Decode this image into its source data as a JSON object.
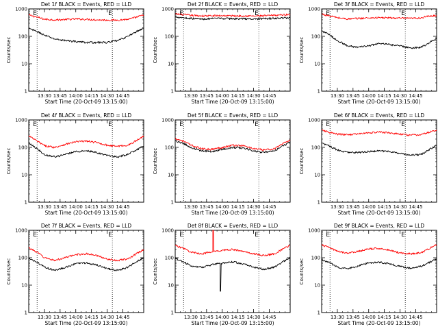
{
  "chart_data": [
    {
      "type": "line",
      "title": "Det 1f BLACK = Events, RED = LLD",
      "xlabel": "Start Time (20-Oct-09 13:15:00)",
      "ylabel": "Counts/sec",
      "xlim": [
        0,
        110
      ],
      "ylim": [
        1,
        1000
      ],
      "yscale": "log",
      "x_ticks": [
        15,
        30,
        45,
        60,
        75,
        90
      ],
      "x_tick_labels": [
        "13:30",
        "13:45",
        "14:00",
        "14:15",
        "14:30",
        "14:45"
      ],
      "y_ticks": [
        1,
        10,
        100,
        1000
      ],
      "y_tick_labels": [
        "1",
        "10",
        "100",
        "1000"
      ],
      "markers": [
        {
          "x": 8,
          "label": "E"
        },
        {
          "x": 80,
          "label": "E"
        }
      ],
      "series": [
        {
          "color": "#000000",
          "x": [
            0,
            8,
            15,
            25,
            35,
            45,
            55,
            65,
            75,
            85,
            95,
            100,
            110
          ],
          "values": [
            190,
            150,
            110,
            80,
            70,
            65,
            60,
            60,
            60,
            70,
            100,
            130,
            200
          ]
        },
        {
          "color": "#ff0000",
          "x": [
            0,
            8,
            15,
            25,
            35,
            45,
            55,
            65,
            75,
            85,
            95,
            100,
            110
          ],
          "values": [
            600,
            500,
            420,
            400,
            410,
            430,
            420,
            400,
            390,
            390,
            420,
            460,
            600
          ]
        }
      ]
    },
    {
      "type": "line",
      "title": "Det 2f BLACK = Events, RED = LLD",
      "xlabel": "Start Time (20-Oct-09 13:15:00)",
      "ylabel": "Counts/sec",
      "xlim": [
        0,
        110
      ],
      "ylim": [
        1,
        1000
      ],
      "yscale": "log",
      "x_ticks": [
        15,
        30,
        45,
        60,
        75,
        90
      ],
      "x_tick_labels": [
        "13:30",
        "13:45",
        "14:00",
        "14:15",
        "14:30",
        "14:45"
      ],
      "y_ticks": [
        1,
        10,
        100,
        1000
      ],
      "y_tick_labels": [
        "1",
        "10",
        "100",
        "1000"
      ],
      "markers": [
        {
          "x": 8,
          "label": "E"
        },
        {
          "x": 80,
          "label": "E"
        }
      ],
      "series": [
        {
          "color": "#000000",
          "x": [
            0,
            8,
            15,
            25,
            35,
            45,
            55,
            65,
            75,
            85,
            95,
            100,
            110
          ],
          "values": [
            520,
            480,
            450,
            430,
            440,
            450,
            440,
            440,
            430,
            440,
            450,
            460,
            480
          ]
        },
        {
          "color": "#ff0000",
          "x": [
            0,
            8,
            15,
            25,
            35,
            45,
            55,
            65,
            75,
            85,
            95,
            100,
            110
          ],
          "values": [
            650,
            620,
            580,
            560,
            560,
            570,
            560,
            560,
            550,
            560,
            580,
            600,
            620
          ]
        }
      ]
    },
    {
      "type": "line",
      "title": "Det 3f BLACK = Events, RED = LLD",
      "xlabel": "Start Time (20-Oct-09 13:15:00)",
      "ylabel": "Counts/sec",
      "xlim": [
        0,
        110
      ],
      "ylim": [
        1,
        1000
      ],
      "yscale": "log",
      "x_ticks": [
        15,
        30,
        45,
        60,
        75,
        90
      ],
      "x_tick_labels": [
        "13:30",
        "13:45",
        "14:00",
        "14:15",
        "14:30",
        "14:45"
      ],
      "y_ticks": [
        1,
        10,
        100,
        1000
      ],
      "y_tick_labels": [
        "1",
        "10",
        "100",
        "1000"
      ],
      "markers": [
        {
          "x": 8,
          "label": "E"
        },
        {
          "x": 80,
          "label": "E"
        }
      ],
      "series": [
        {
          "color": "#000000",
          "x": [
            0,
            8,
            15,
            25,
            35,
            45,
            55,
            65,
            75,
            85,
            95,
            100,
            110
          ],
          "values": [
            160,
            110,
            70,
            45,
            40,
            45,
            55,
            50,
            45,
            38,
            40,
            50,
            85
          ]
        },
        {
          "color": "#ff0000",
          "x": [
            0,
            8,
            15,
            25,
            35,
            45,
            55,
            65,
            75,
            85,
            95,
            100,
            110
          ],
          "values": [
            650,
            550,
            480,
            430,
            450,
            470,
            480,
            470,
            460,
            450,
            470,
            520,
            580
          ]
        }
      ]
    },
    {
      "type": "line",
      "title": "Det 4f BLACK = Events, RED = LLD",
      "xlabel": "Start Time (20-Oct-09 13:15:00)",
      "ylabel": "Counts/sec",
      "xlim": [
        0,
        110
      ],
      "ylim": [
        1,
        1000
      ],
      "yscale": "log",
      "x_ticks": [
        15,
        30,
        45,
        60,
        75,
        90
      ],
      "x_tick_labels": [
        "13:30",
        "13:45",
        "14:00",
        "14:15",
        "14:30",
        "14:45"
      ],
      "y_ticks": [
        1,
        10,
        100,
        1000
      ],
      "y_tick_labels": [
        "1",
        "10",
        "100",
        "1000"
      ],
      "markers": [
        {
          "x": 8,
          "label": "E"
        },
        {
          "x": 80,
          "label": "E"
        }
      ],
      "series": [
        {
          "color": "#000000",
          "x": [
            0,
            8,
            15,
            25,
            35,
            45,
            55,
            65,
            75,
            85,
            95,
            100,
            110
          ],
          "values": [
            150,
            90,
            55,
            45,
            55,
            70,
            75,
            65,
            50,
            45,
            55,
            70,
            110
          ]
        },
        {
          "color": "#ff0000",
          "x": [
            0,
            8,
            15,
            25,
            35,
            45,
            55,
            65,
            75,
            85,
            95,
            100,
            110
          ],
          "values": [
            260,
            170,
            115,
            100,
            130,
            160,
            170,
            150,
            120,
            110,
            120,
            150,
            260
          ]
        }
      ]
    },
    {
      "type": "line",
      "title": "Det 5f BLACK = Events, RED = LLD",
      "xlabel": "Start Time (20-Oct-09 13:15:00)",
      "ylabel": "Counts/sec",
      "xlim": [
        0,
        110
      ],
      "ylim": [
        1,
        1000
      ],
      "yscale": "log",
      "x_ticks": [
        15,
        30,
        45,
        60,
        75,
        90
      ],
      "x_tick_labels": [
        "13:30",
        "13:45",
        "14:00",
        "14:15",
        "14:30",
        "14:45"
      ],
      "y_ticks": [
        1,
        10,
        100,
        1000
      ],
      "y_tick_labels": [
        "1",
        "10",
        "100",
        "1000"
      ],
      "markers": [
        {
          "x": 8,
          "label": "E"
        },
        {
          "x": 80,
          "label": "E"
        }
      ],
      "series": [
        {
          "color": "#000000",
          "x": [
            0,
            8,
            15,
            25,
            35,
            45,
            55,
            65,
            75,
            85,
            95,
            100,
            110
          ],
          "values": [
            170,
            140,
            100,
            75,
            70,
            85,
            100,
            95,
            75,
            65,
            75,
            95,
            160
          ]
        },
        {
          "color": "#ff0000",
          "x": [
            0,
            8,
            15,
            25,
            35,
            45,
            55,
            65,
            75,
            85,
            95,
            100,
            110
          ],
          "values": [
            210,
            170,
            120,
            90,
            85,
            100,
            120,
            115,
            90,
            80,
            90,
            115,
            190
          ]
        }
      ]
    },
    {
      "type": "line",
      "title": "Det 6f BLACK = Events, RED = LLD",
      "xlabel": "Start Time (20-Oct-09 13:15:00)",
      "ylabel": "Counts/sec",
      "xlim": [
        0,
        110
      ],
      "ylim": [
        1,
        1000
      ],
      "yscale": "log",
      "x_ticks": [
        15,
        30,
        45,
        60,
        75,
        90
      ],
      "x_tick_labels": [
        "13:30",
        "13:45",
        "14:00",
        "14:15",
        "14:30",
        "14:45"
      ],
      "y_ticks": [
        1,
        10,
        100,
        1000
      ],
      "y_tick_labels": [
        "1",
        "10",
        "100",
        "1000"
      ],
      "markers": [
        {
          "x": 8,
          "label": "E"
        },
        {
          "x": 80,
          "label": "E"
        }
      ],
      "series": [
        {
          "color": "#000000",
          "x": [
            0,
            8,
            15,
            25,
            35,
            45,
            55,
            65,
            75,
            85,
            95,
            100,
            110
          ],
          "values": [
            140,
            110,
            80,
            65,
            65,
            70,
            75,
            70,
            60,
            52,
            55,
            70,
            120
          ]
        },
        {
          "color": "#ff0000",
          "x": [
            0,
            8,
            15,
            25,
            35,
            45,
            55,
            65,
            75,
            85,
            95,
            100,
            110
          ],
          "values": [
            420,
            350,
            300,
            290,
            310,
            340,
            360,
            340,
            300,
            280,
            290,
            330,
            430
          ]
        }
      ]
    },
    {
      "type": "line",
      "title": "Det 7f BLACK = Events, RED = LLD",
      "xlabel": "Start Time (20-Oct-09 13:15:00)",
      "ylabel": "Counts/sec",
      "xlim": [
        0,
        110
      ],
      "ylim": [
        1,
        1000
      ],
      "yscale": "log",
      "x_ticks": [
        15,
        30,
        45,
        60,
        75,
        90
      ],
      "x_tick_labels": [
        "13:30",
        "13:45",
        "14:00",
        "14:15",
        "14:30",
        "14:45"
      ],
      "y_ticks": [
        1,
        10,
        100,
        1000
      ],
      "y_tick_labels": [
        "1",
        "10",
        "100",
        "1000"
      ],
      "markers": [
        {
          "x": 8,
          "label": "E"
        },
        {
          "x": 80,
          "label": "E"
        }
      ],
      "series": [
        {
          "color": "#000000",
          "x": [
            0,
            8,
            15,
            25,
            35,
            45,
            55,
            65,
            75,
            85,
            95,
            100,
            110
          ],
          "values": [
            95,
            70,
            45,
            35,
            45,
            60,
            65,
            55,
            40,
            35,
            45,
            60,
            100
          ]
        },
        {
          "color": "#ff0000",
          "x": [
            0,
            8,
            15,
            25,
            35,
            45,
            55,
            65,
            75,
            85,
            95,
            100,
            110
          ],
          "values": [
            230,
            160,
            100,
            80,
            100,
            130,
            140,
            120,
            90,
            80,
            90,
            120,
            200
          ]
        }
      ]
    },
    {
      "type": "line",
      "title": "Det 8f BLACK = Events, RED = LLD",
      "xlabel": "Start Time (20-Oct-09 13:15:00)",
      "ylabel": "Counts/sec",
      "xlim": [
        0,
        110
      ],
      "ylim": [
        1,
        1000
      ],
      "yscale": "log",
      "x_ticks": [
        15,
        30,
        45,
        60,
        75,
        90
      ],
      "x_tick_labels": [
        "13:30",
        "13:45",
        "14:00",
        "14:15",
        "14:30",
        "14:45"
      ],
      "y_ticks": [
        1,
        10,
        100,
        1000
      ],
      "y_tick_labels": [
        "1",
        "10",
        "100",
        "1000"
      ],
      "markers": [
        {
          "x": 8,
          "label": "E"
        },
        {
          "x": 80,
          "label": "E"
        }
      ],
      "series": [
        {
          "color": "#000000",
          "x": [
            0,
            8,
            15,
            25,
            35,
            40,
            43,
            43.01,
            43.5,
            44,
            44.01,
            50,
            55,
            65,
            75,
            85,
            95,
            100,
            110
          ],
          "values": [
            95,
            70,
            50,
            45,
            55,
            60,
            62,
            6,
            6,
            62,
            62,
            68,
            70,
            60,
            45,
            38,
            45,
            60,
            100
          ]
        },
        {
          "color": "#ff0000",
          "x": [
            0,
            8,
            15,
            25,
            35,
            36,
            36.01,
            36.5,
            37,
            37.01,
            45,
            55,
            65,
            75,
            85,
            95,
            100,
            110
          ],
          "values": [
            280,
            220,
            160,
            140,
            160,
            165,
            1000,
            1000,
            165,
            165,
            190,
            200,
            170,
            140,
            120,
            140,
            180,
            280
          ]
        }
      ]
    },
    {
      "type": "line",
      "title": "Det 9f BLACK = Events, RED = LLD",
      "xlabel": "Start Time (20-Oct-09 13:15:00)",
      "ylabel": "Counts/sec",
      "xlim": [
        0,
        110
      ],
      "ylim": [
        1,
        1000
      ],
      "yscale": "log",
      "x_ticks": [
        15,
        30,
        45,
        60,
        75,
        90
      ],
      "x_tick_labels": [
        "13:30",
        "13:45",
        "14:00",
        "14:15",
        "14:30",
        "14:45"
      ],
      "y_ticks": [
        1,
        10,
        100,
        1000
      ],
      "y_tick_labels": [
        "1",
        "10",
        "100",
        "1000"
      ],
      "markers": [
        {
          "x": 8,
          "label": "E"
        },
        {
          "x": 80,
          "label": "E"
        }
      ],
      "series": [
        {
          "color": "#000000",
          "x": [
            0,
            8,
            15,
            25,
            35,
            45,
            55,
            65,
            75,
            85,
            95,
            100,
            110
          ],
          "values": [
            85,
            65,
            45,
            40,
            50,
            65,
            70,
            60,
            48,
            42,
            48,
            60,
            90
          ]
        },
        {
          "color": "#ff0000",
          "x": [
            0,
            8,
            15,
            25,
            35,
            45,
            55,
            65,
            75,
            85,
            95,
            100,
            110
          ],
          "values": [
            290,
            230,
            170,
            150,
            170,
            210,
            220,
            190,
            150,
            140,
            150,
            190,
            300
          ]
        }
      ]
    }
  ]
}
